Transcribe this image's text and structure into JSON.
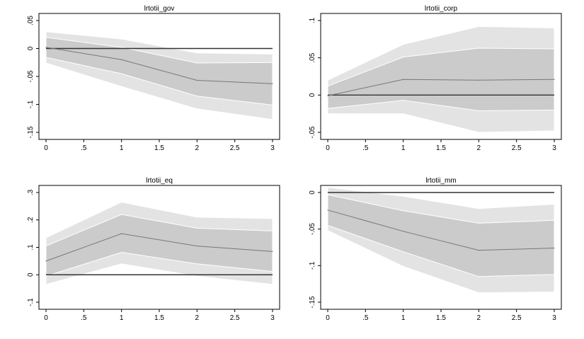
{
  "colors": {
    "background": "#ffffff",
    "outer_band": "#e3e3e3",
    "inner_band": "#cbcbcb",
    "band_edge": "#ffffff",
    "response_line": "#777777",
    "zero_line": "#333333",
    "axis": "#000000"
  },
  "chart_data": [
    {
      "type": "area",
      "title": "lrtotii_gov",
      "x": [
        0,
        1,
        2,
        3
      ],
      "xlim": [
        0,
        3
      ],
      "ylim": [
        -0.15,
        0.05
      ],
      "xticks": [
        "0",
        ".5",
        "1",
        "1.5",
        "2",
        "2.5",
        "3"
      ],
      "yticks": [
        "-.15",
        "-.1",
        "-.05",
        "0",
        ".05"
      ],
      "legend": false,
      "grid": false,
      "series": [
        {
          "role": "outer_band",
          "upper": [
            0.03,
            0.017,
            -0.008,
            -0.01
          ],
          "lower": [
            -0.026,
            -0.068,
            -0.108,
            -0.127
          ]
        },
        {
          "role": "inner_band",
          "upper": [
            0.02,
            0.002,
            -0.026,
            -0.025
          ],
          "lower": [
            -0.016,
            -0.045,
            -0.085,
            -0.101
          ]
        },
        {
          "role": "response",
          "values": [
            0.002,
            -0.02,
            -0.057,
            -0.063
          ]
        },
        {
          "role": "zero",
          "values": [
            0,
            0,
            0,
            0
          ]
        }
      ]
    },
    {
      "type": "area",
      "title": "lrtotii_corp",
      "x": [
        0,
        1,
        2,
        3
      ],
      "xlim": [
        0,
        3
      ],
      "ylim": [
        -0.05,
        0.1
      ],
      "xticks": [
        "0",
        ".5",
        "1",
        "1.5",
        "2",
        "2.5",
        "3"
      ],
      "yticks": [
        "-.05",
        "0",
        ".05",
        ".1"
      ],
      "legend": false,
      "grid": false,
      "series": [
        {
          "role": "outer_band",
          "upper": [
            0.02,
            0.068,
            0.092,
            0.09
          ],
          "lower": [
            -0.025,
            -0.025,
            -0.05,
            -0.048
          ]
        },
        {
          "role": "inner_band",
          "upper": [
            0.012,
            0.051,
            0.063,
            0.062
          ],
          "lower": [
            -0.018,
            -0.007,
            -0.021,
            -0.02
          ]
        },
        {
          "role": "response",
          "values": [
            -0.001,
            0.021,
            0.02,
            0.021
          ]
        },
        {
          "role": "zero",
          "values": [
            0,
            0,
            0,
            0
          ]
        }
      ]
    },
    {
      "type": "area",
      "title": "lrtotii_eq",
      "x": [
        0,
        1,
        2,
        3
      ],
      "xlim": [
        0,
        3
      ],
      "ylim": [
        -0.1,
        0.3
      ],
      "xticks": [
        "0",
        ".5",
        "1",
        "1.5",
        "2",
        "2.5",
        "3"
      ],
      "yticks": [
        "-.1",
        "0",
        ".1",
        ".2",
        ".3"
      ],
      "legend": false,
      "grid": false,
      "series": [
        {
          "role": "outer_band",
          "upper": [
            0.135,
            0.265,
            0.21,
            0.205
          ],
          "lower": [
            -0.035,
            0.04,
            -0.005,
            -0.035
          ]
        },
        {
          "role": "inner_band",
          "upper": [
            0.105,
            0.22,
            0.17,
            0.16
          ],
          "lower": [
            -0.005,
            0.082,
            0.04,
            0.012
          ]
        },
        {
          "role": "response",
          "values": [
            0.05,
            0.15,
            0.105,
            0.085
          ]
        },
        {
          "role": "zero",
          "values": [
            0,
            0,
            0,
            0
          ]
        }
      ]
    },
    {
      "type": "area",
      "title": "lrtotii_mm",
      "x": [
        0,
        1,
        2,
        3
      ],
      "xlim": [
        0,
        3
      ],
      "ylim": [
        -0.15,
        0.0
      ],
      "xticks": [
        "0",
        ".5",
        "1",
        "1.5",
        "2",
        "2.5",
        "3"
      ],
      "yticks": [
        "-.15",
        "-.1",
        "-.05",
        "0"
      ],
      "legend": false,
      "grid": false,
      "series": [
        {
          "role": "outer_band",
          "upper": [
            0.007,
            -0.005,
            -0.022,
            -0.016
          ],
          "lower": [
            -0.052,
            -0.101,
            -0.137,
            -0.136
          ]
        },
        {
          "role": "inner_band",
          "upper": [
            -0.003,
            -0.025,
            -0.042,
            -0.038
          ],
          "lower": [
            -0.045,
            -0.081,
            -0.115,
            -0.112
          ]
        },
        {
          "role": "response",
          "values": [
            -0.024,
            -0.053,
            -0.079,
            -0.076
          ]
        },
        {
          "role": "zero",
          "values": [
            0,
            0,
            0,
            0
          ]
        }
      ]
    }
  ]
}
